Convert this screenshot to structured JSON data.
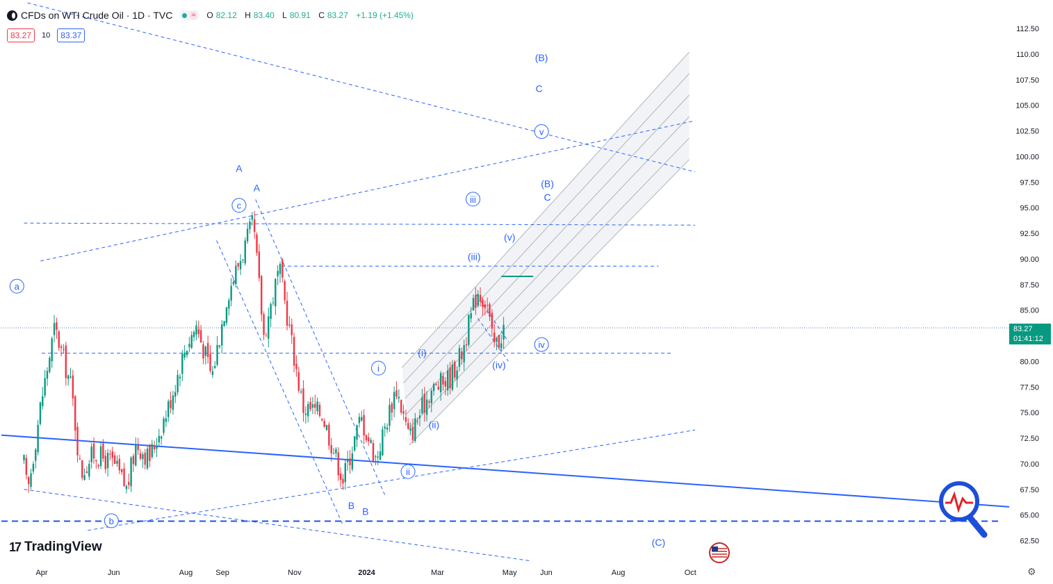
{
  "header": {
    "title": "CFDs on WTI Crude Oil · 1D · TVC",
    "ohlc": {
      "o_label": "O",
      "o": "82.12",
      "h_label": "H",
      "h": "83.40",
      "l_label": "L",
      "l": "80.91",
      "c_label": "C",
      "c": "83.27",
      "change": "+1.19 (+1.45%)"
    }
  },
  "trade": {
    "sell": "83.27",
    "spread": "10",
    "buy": "83.37"
  },
  "logo": {
    "text": "TradingView"
  },
  "last_price": {
    "value": "83.27",
    "countdown": "01:41:12"
  },
  "colors": {
    "up": "#089981",
    "down": "#f23645",
    "drawing": "#2962ff",
    "channel_fill": "#eceef2"
  },
  "chart_data": {
    "type": "candlestick",
    "title": "CFDs on WTI Crude Oil · 1D · TVC",
    "y_ticks": [
      "112.50",
      "110.00",
      "107.50",
      "105.00",
      "102.50",
      "100.00",
      "97.50",
      "95.00",
      "92.50",
      "90.00",
      "87.50",
      "85.00",
      "82.50",
      "80.00",
      "77.50",
      "75.00",
      "72.50",
      "70.00",
      "67.50",
      "65.00",
      "62.50"
    ],
    "x_ticks": [
      "Apr",
      "Jun",
      "Aug",
      "Sep",
      "Nov",
      "2024",
      "Mar",
      "May",
      "Jun",
      "Aug",
      "Oct"
    ],
    "ylim": [
      61.5,
      115
    ],
    "grid": false,
    "price_path": [
      [
        "2023-03-17",
        70.0
      ],
      [
        "2023-03-20",
        67.0
      ],
      [
        "2023-03-31",
        75.7
      ],
      [
        "2023-04-12",
        83.3
      ],
      [
        "2023-04-26",
        77.5
      ],
      [
        "2023-05-04",
        69.0
      ],
      [
        "2023-05-15",
        71.0
      ],
      [
        "2023-06-01",
        70.0
      ],
      [
        "2023-06-12",
        67.5
      ],
      [
        "2023-06-20",
        72.0
      ],
      [
        "2023-07-01",
        70.5
      ],
      [
        "2023-07-17",
        75.5
      ],
      [
        "2023-08-01",
        81.5
      ],
      [
        "2023-08-10",
        83.5
      ],
      [
        "2023-08-23",
        78.5
      ],
      [
        "2023-09-05",
        86.5
      ],
      [
        "2023-09-27",
        93.5
      ],
      [
        "2023-10-06",
        82.5
      ],
      [
        "2023-10-19",
        89.0
      ],
      [
        "2023-11-08",
        75.5
      ],
      [
        "2023-11-24",
        75.0
      ],
      [
        "2023-12-12",
        68.5
      ],
      [
        "2023-12-27",
        74.5
      ],
      [
        "2024-01-09",
        70.5
      ],
      [
        "2024-01-26",
        77.5
      ],
      [
        "2024-02-06",
        72.5
      ],
      [
        "2024-02-23",
        77.0
      ],
      [
        "2024-03-12",
        78.5
      ],
      [
        "2024-03-22",
        81.0
      ],
      [
        "2024-04-04",
        87.0
      ],
      [
        "2024-04-12",
        85.5
      ],
      [
        "2024-04-17",
        81.5
      ],
      [
        "2024-04-22",
        82.0
      ],
      [
        "2024-04-26",
        83.27
      ]
    ],
    "annotations": [
      {
        "text": "a",
        "circled": true,
        "date": "2023-03-11",
        "price": 87.0
      },
      {
        "text": "b",
        "circled": true,
        "date": "2023-05-30",
        "price": 64.1
      },
      {
        "text": "c",
        "circled": true,
        "date": "2023-09-15",
        "price": 94.9
      },
      {
        "text": "A",
        "circled": false,
        "date": "2023-09-15",
        "price": 98.5
      },
      {
        "text": "A",
        "circled": false,
        "date": "2023-09-30",
        "price": 96.6
      },
      {
        "text": "B",
        "circled": false,
        "date": "2023-12-19",
        "price": 65.6
      },
      {
        "text": "B",
        "circled": false,
        "date": "2023-12-31",
        "price": 65.0
      },
      {
        "text": "i",
        "circled": true,
        "date": "2024-01-11",
        "price": 79.0
      },
      {
        "text": "ii",
        "circled": true,
        "date": "2024-02-05",
        "price": 68.9
      },
      {
        "text": "(i)",
        "circled": false,
        "date": "2024-02-17",
        "price": 80.5
      },
      {
        "text": "(ii)",
        "circled": false,
        "date": "2024-02-27",
        "price": 73.5
      },
      {
        "text": "(iii)",
        "circled": false,
        "date": "2024-04-01",
        "price": 89.9
      },
      {
        "text": "(iv)",
        "circled": false,
        "date": "2024-04-22",
        "price": 79.3
      },
      {
        "text": "(v)",
        "circled": false,
        "date": "2024-05-01",
        "price": 91.8
      },
      {
        "text": "iii",
        "circled": true,
        "date": "2024-03-31",
        "price": 95.5
      },
      {
        "text": "iv",
        "circled": true,
        "date": "2024-05-28",
        "price": 81.3
      },
      {
        "text": "v",
        "circled": true,
        "date": "2024-05-28",
        "price": 102.1
      },
      {
        "text": "(B)",
        "circled": false,
        "date": "2024-05-28",
        "price": 109.3
      },
      {
        "text": "C",
        "circled": false,
        "date": "2024-05-26",
        "price": 106.3
      },
      {
        "text": "(B)",
        "circled": false,
        "date": "2024-06-02",
        "price": 97.0
      },
      {
        "text": "C",
        "circled": false,
        "date": "2024-06-02",
        "price": 95.7
      },
      {
        "text": "(C)",
        "circled": false,
        "date": "2024-09-04",
        "price": 62.0
      }
    ]
  }
}
